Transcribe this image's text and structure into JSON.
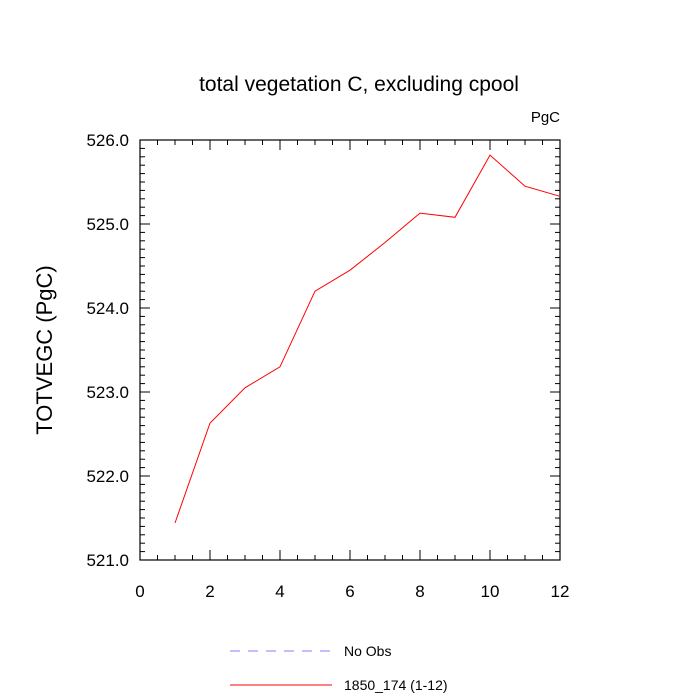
{
  "chart_data": {
    "type": "line",
    "title": "total vegetation C, excluding cpool",
    "units_label": "PgC",
    "ylabel": "TOTVEGC  (PgC)",
    "xlabel": "",
    "xlim": [
      0,
      12
    ],
    "ylim": [
      521.0,
      526.0
    ],
    "xticks": [
      0,
      2,
      4,
      6,
      8,
      10,
      12
    ],
    "yticks": [
      "526.0",
      "525.0",
      "524.0",
      "523.0",
      "522.0",
      "521.0"
    ],
    "x": [
      1,
      2,
      3,
      4,
      5,
      6,
      7,
      8,
      9,
      10,
      11,
      12
    ],
    "series": [
      {
        "name": "1850_174 (1-12)",
        "color": "#ff0000",
        "style": "solid",
        "values": [
          521.44,
          522.63,
          523.05,
          523.3,
          524.2,
          524.45,
          524.78,
          525.13,
          525.08,
          525.82,
          525.45,
          525.33
        ]
      }
    ],
    "legend": [
      {
        "label": "No Obs",
        "color": "#8080ff",
        "style": "dashed"
      },
      {
        "label": "1850_174 (1-12)",
        "color": "#ff0000",
        "style": "solid"
      }
    ],
    "legend_position": "bottom",
    "grid": false
  }
}
